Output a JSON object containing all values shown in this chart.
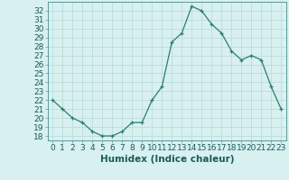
{
  "x": [
    0,
    1,
    2,
    3,
    4,
    5,
    6,
    7,
    8,
    9,
    10,
    11,
    12,
    13,
    14,
    15,
    16,
    17,
    18,
    19,
    20,
    21,
    22,
    23
  ],
  "y": [
    22.0,
    21.0,
    20.0,
    19.5,
    18.5,
    18.0,
    18.0,
    18.5,
    19.5,
    19.5,
    22.0,
    23.5,
    28.5,
    29.5,
    32.5,
    32.0,
    30.5,
    29.5,
    27.5,
    26.5,
    27.0,
    26.5,
    23.5,
    21.0
  ],
  "xlabel": "Humidex (Indice chaleur)",
  "xlim": [
    -0.5,
    23.5
  ],
  "ylim": [
    17.5,
    33.0
  ],
  "yticks": [
    18,
    19,
    20,
    21,
    22,
    23,
    24,
    25,
    26,
    27,
    28,
    29,
    30,
    31,
    32
  ],
  "xticks": [
    0,
    1,
    2,
    3,
    4,
    5,
    6,
    7,
    8,
    9,
    10,
    11,
    12,
    13,
    14,
    15,
    16,
    17,
    18,
    19,
    20,
    21,
    22,
    23
  ],
  "line_color": "#2e7d6e",
  "marker": "+",
  "bg_color": "#d8f0f0",
  "grid_color": "#b8d8d8",
  "tick_fontsize": 6.5,
  "label_fontsize": 7.5
}
